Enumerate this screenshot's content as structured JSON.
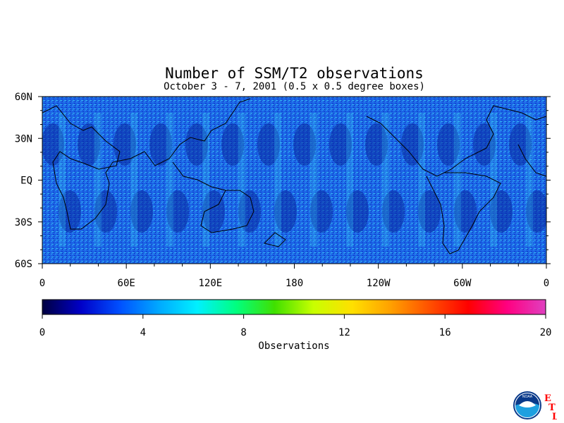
{
  "title": "Number of SSM/T2 observations",
  "subtitle": "October 3 - 7, 2001 (0.5 x 0.5 degree boxes)",
  "map": {
    "lat_labels": [
      "60N",
      "30N",
      "EQ",
      "30S",
      "60S"
    ],
    "lat_values": [
      60,
      30,
      0,
      -30,
      -60
    ],
    "lon_labels": [
      "0",
      "60E",
      "120E",
      "180",
      "120W",
      "60W",
      "0"
    ],
    "lon_values": [
      0,
      60,
      120,
      180,
      240,
      300,
      360
    ],
    "lat_range": [
      -60,
      60
    ],
    "lon_range": [
      0,
      360
    ]
  },
  "colorbar": {
    "title": "Observations",
    "tick_labels": [
      "0",
      "4",
      "8",
      "12",
      "16",
      "20"
    ],
    "range": [
      0,
      20
    ],
    "colors": [
      "#000040",
      "#0000c8",
      "#0050ff",
      "#00a8ff",
      "#00f0ff",
      "#00ff80",
      "#40e000",
      "#c8ff00",
      "#ffe000",
      "#ffa000",
      "#ff5000",
      "#ff0000",
      "#ff0080",
      "#e040c0"
    ]
  },
  "logo": {
    "org": "NOAA",
    "lab_letters": [
      "E",
      "T",
      "L"
    ],
    "lab_color": "#ff0000"
  }
}
